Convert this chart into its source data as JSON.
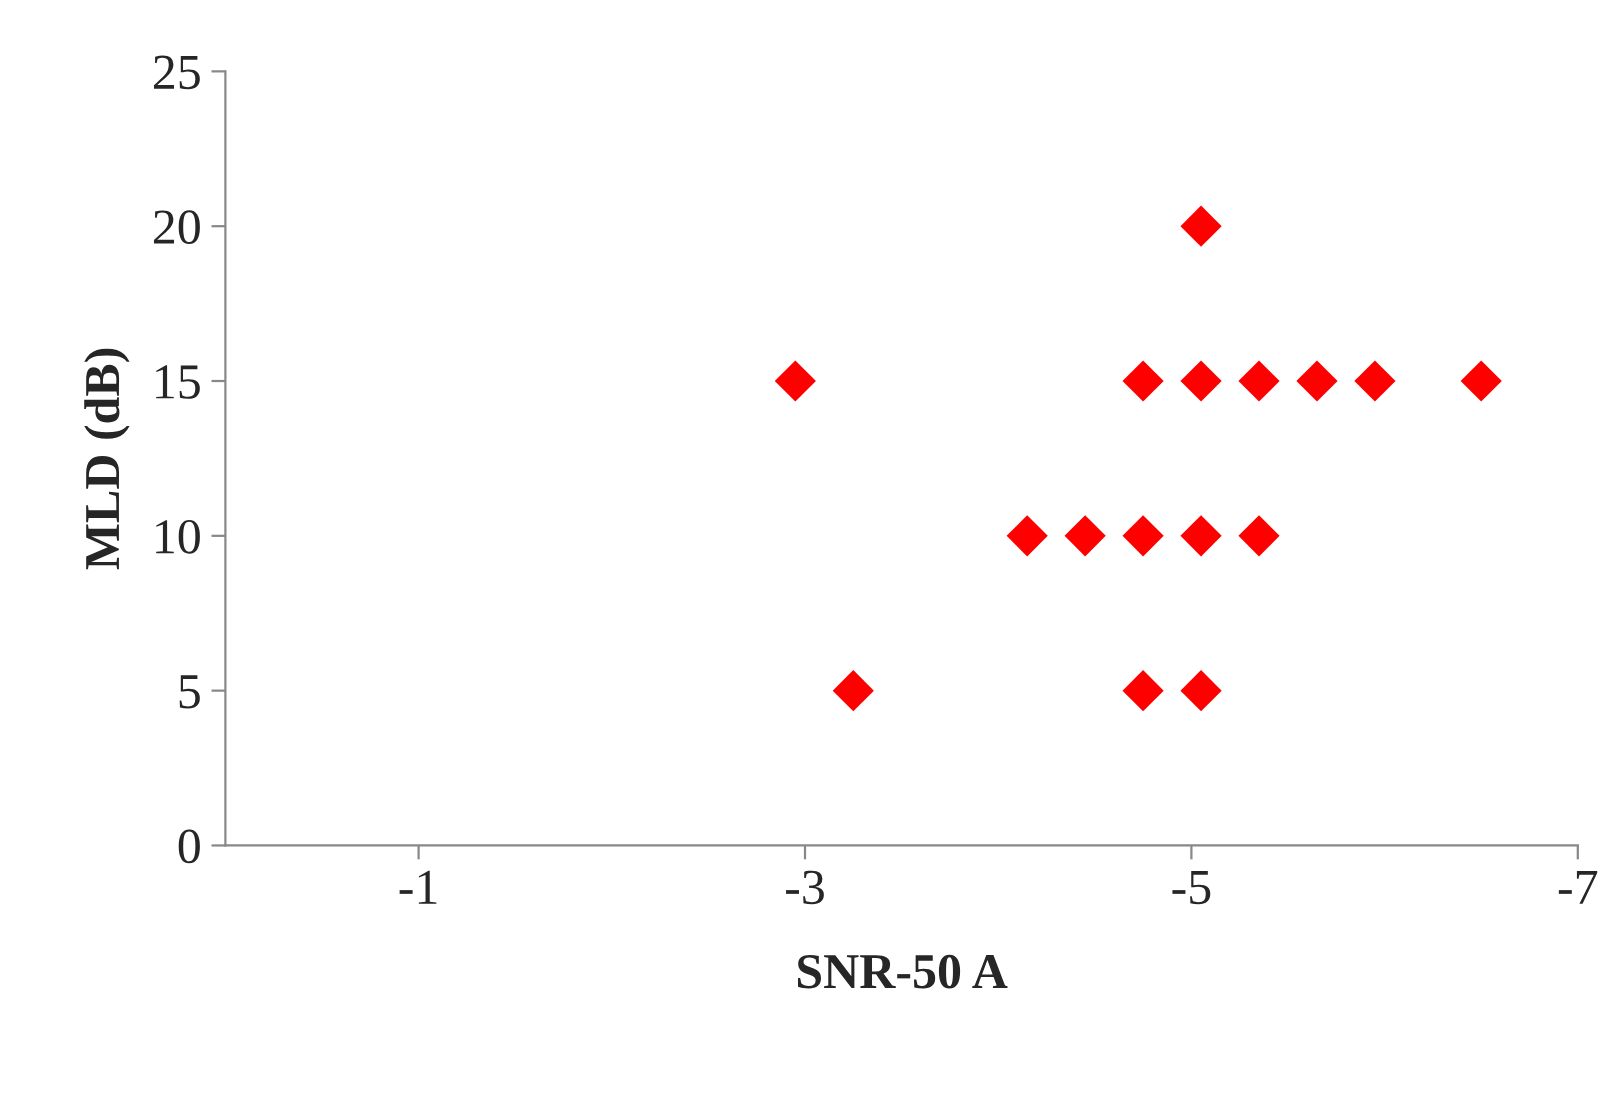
{
  "chart_data": {
    "type": "scatter",
    "xlabel": "SNR-50 A",
    "ylabel": "MLD (dB)",
    "series": [
      {
        "color": "#ff0000",
        "x": [
          -2.95,
          -3.25,
          -4.15,
          -4.45,
          -4.75,
          -4.75,
          -4.75,
          -5.05,
          -5.05,
          -5.05,
          -5.05,
          -5.35,
          -5.35,
          -5.65,
          -5.95,
          -6.5
        ],
        "values": [
          15,
          5,
          10,
          10,
          10,
          15,
          5,
          20,
          15,
          10,
          5,
          15,
          10,
          15,
          15,
          15
        ]
      }
    ],
    "marker": "diamond",
    "xlim": [
      0,
      -7
    ],
    "xticks": [
      -1,
      -3,
      -5,
      -7
    ],
    "ylim": [
      0,
      25
    ],
    "yticks": [
      0,
      5,
      10,
      15,
      20,
      25
    ],
    "grid": false
  }
}
